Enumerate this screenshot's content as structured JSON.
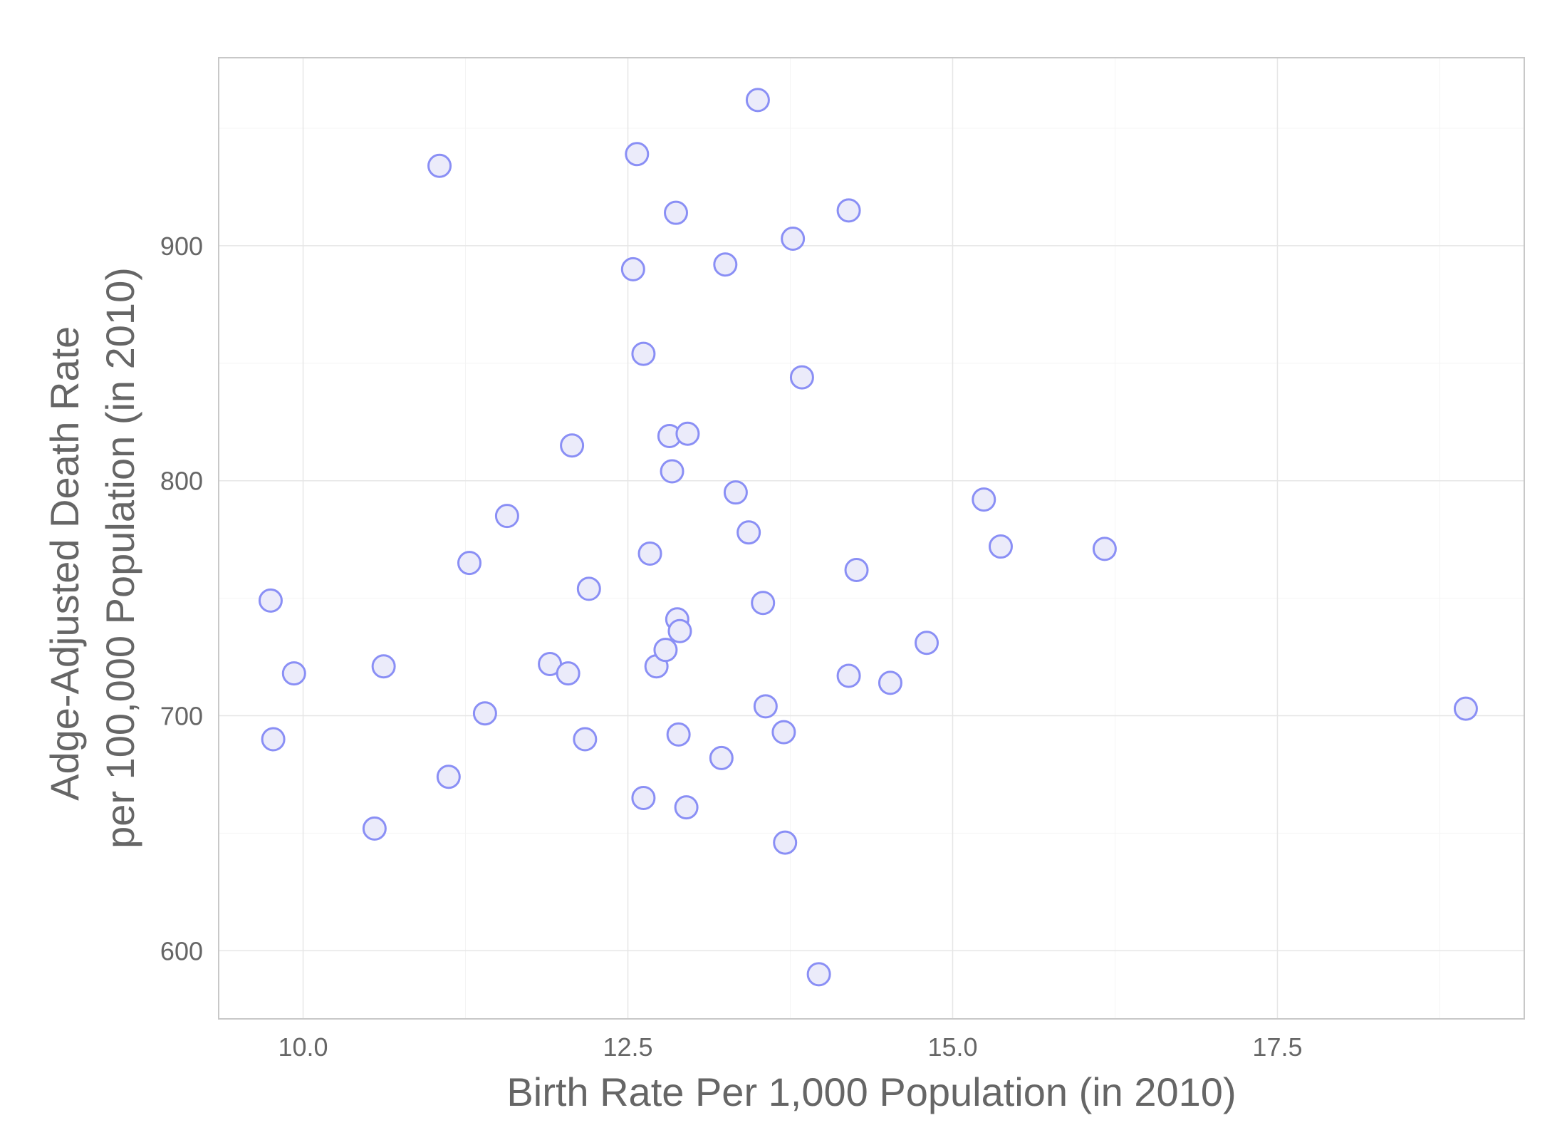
{
  "chart_data": {
    "type": "scatter",
    "title": "",
    "xlabel": "Birth Rate Per 1,000 Population (in 2010)",
    "ylabel_lines": [
      "Adge-Adjusted Death Rate",
      "per 100,000 Population (in 2010)"
    ],
    "xlim": [
      9.35,
      19.4
    ],
    "ylim": [
      571,
      980
    ],
    "x_ticks": [
      10.0,
      12.5,
      15.0,
      17.5
    ],
    "x_tick_labels": [
      "10.0",
      "12.5",
      "15.0",
      "17.5"
    ],
    "y_ticks": [
      600,
      700,
      800,
      900
    ],
    "y_tick_labels": [
      "600",
      "700",
      "800",
      "900"
    ],
    "x_minor_ticks": [
      11.25,
      13.75,
      16.25,
      18.75
    ],
    "y_minor_ticks": [
      650,
      750,
      850,
      950
    ],
    "grid": true,
    "legend": "none",
    "marker": {
      "stroke": "#8a8ff5",
      "fill": "#ebebfa"
    },
    "points": [
      {
        "x": 9.75,
        "y": 749
      },
      {
        "x": 9.77,
        "y": 690
      },
      {
        "x": 9.93,
        "y": 718
      },
      {
        "x": 10.55,
        "y": 652
      },
      {
        "x": 10.62,
        "y": 721
      },
      {
        "x": 11.05,
        "y": 934
      },
      {
        "x": 11.12,
        "y": 674
      },
      {
        "x": 11.28,
        "y": 765
      },
      {
        "x": 11.4,
        "y": 701
      },
      {
        "x": 11.57,
        "y": 785
      },
      {
        "x": 11.9,
        "y": 722
      },
      {
        "x": 12.04,
        "y": 718
      },
      {
        "x": 12.07,
        "y": 815
      },
      {
        "x": 12.17,
        "y": 690
      },
      {
        "x": 12.2,
        "y": 754
      },
      {
        "x": 12.54,
        "y": 890
      },
      {
        "x": 12.57,
        "y": 939
      },
      {
        "x": 12.62,
        "y": 854
      },
      {
        "x": 12.62,
        "y": 665
      },
      {
        "x": 12.67,
        "y": 769
      },
      {
        "x": 12.72,
        "y": 721
      },
      {
        "x": 12.79,
        "y": 728
      },
      {
        "x": 12.82,
        "y": 819
      },
      {
        "x": 12.84,
        "y": 804
      },
      {
        "x": 12.87,
        "y": 914
      },
      {
        "x": 12.88,
        "y": 741
      },
      {
        "x": 12.89,
        "y": 692
      },
      {
        "x": 12.9,
        "y": 736
      },
      {
        "x": 12.95,
        "y": 661
      },
      {
        "x": 12.96,
        "y": 820
      },
      {
        "x": 13.22,
        "y": 682
      },
      {
        "x": 13.25,
        "y": 892
      },
      {
        "x": 13.33,
        "y": 795
      },
      {
        "x": 13.43,
        "y": 778
      },
      {
        "x": 13.5,
        "y": 962
      },
      {
        "x": 13.54,
        "y": 748
      },
      {
        "x": 13.56,
        "y": 704
      },
      {
        "x": 13.7,
        "y": 693
      },
      {
        "x": 13.71,
        "y": 646
      },
      {
        "x": 13.77,
        "y": 903
      },
      {
        "x": 13.84,
        "y": 844
      },
      {
        "x": 13.97,
        "y": 590
      },
      {
        "x": 14.2,
        "y": 915
      },
      {
        "x": 14.2,
        "y": 717
      },
      {
        "x": 14.26,
        "y": 762
      },
      {
        "x": 14.52,
        "y": 714
      },
      {
        "x": 14.8,
        "y": 731
      },
      {
        "x": 15.24,
        "y": 792
      },
      {
        "x": 15.37,
        "y": 772
      },
      {
        "x": 16.17,
        "y": 771
      },
      {
        "x": 18.95,
        "y": 703
      }
    ]
  }
}
